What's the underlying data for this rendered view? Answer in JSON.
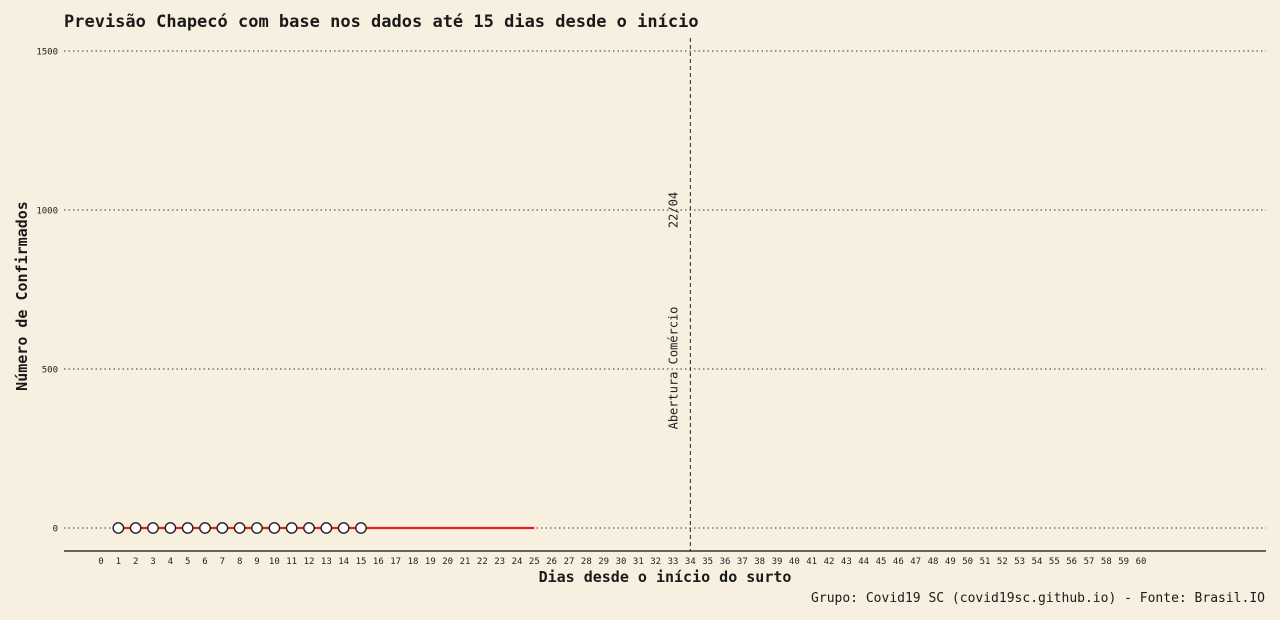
{
  "chart_data": {
    "type": "line",
    "title": "Previsão Chapecó com base nos dados até 15 dias desde o início",
    "xlabel": "Dias desde o início do surto",
    "ylabel": "Número de Confirmados",
    "caption": "Grupo: Covid19 SC (covid19sc.github.io) - Fonte: Brasil.IO",
    "xlim": [
      0,
      60
    ],
    "ylim": [
      -70,
      1600
    ],
    "y_ticks": [
      0,
      500,
      1000,
      1500
    ],
    "x_ticks": [
      0,
      1,
      2,
      3,
      4,
      5,
      6,
      7,
      8,
      9,
      10,
      11,
      12,
      13,
      14,
      15,
      16,
      17,
      18,
      19,
      20,
      21,
      22,
      23,
      24,
      25,
      26,
      27,
      28,
      29,
      30,
      31,
      32,
      33,
      34,
      35,
      36,
      37,
      38,
      39,
      40,
      41,
      42,
      43,
      44,
      45,
      46,
      47,
      48,
      49,
      50,
      51,
      52,
      53,
      54,
      55,
      56,
      57,
      58,
      59,
      60
    ],
    "grid": "horizontal-dotted",
    "series": [
      {
        "kind": "points",
        "color": "#ffffff",
        "stroke": "#222222",
        "x": [
          1,
          2,
          3,
          4,
          5,
          6,
          7,
          8,
          9,
          10,
          11,
          12,
          13,
          14,
          15
        ],
        "y": [
          0,
          0,
          0,
          0,
          0,
          0,
          0,
          0,
          0,
          0,
          0,
          0,
          0,
          0,
          0
        ]
      },
      {
        "kind": "line",
        "color": "#e81f1f",
        "x": [
          1,
          2,
          3,
          4,
          5,
          6,
          7,
          8,
          9,
          10,
          11,
          12,
          13,
          14,
          15,
          16,
          17,
          18,
          19,
          20,
          21,
          22,
          23,
          24,
          25
        ],
        "y": [
          0,
          0,
          0,
          0,
          0,
          0,
          0,
          0,
          0,
          0,
          0,
          0,
          0,
          0,
          0,
          0,
          0,
          0,
          0,
          0,
          0,
          0,
          0,
          0,
          0
        ]
      }
    ],
    "annotation": {
      "x": 34,
      "date_label": "22/04",
      "text": "Abertura Comércio"
    }
  }
}
